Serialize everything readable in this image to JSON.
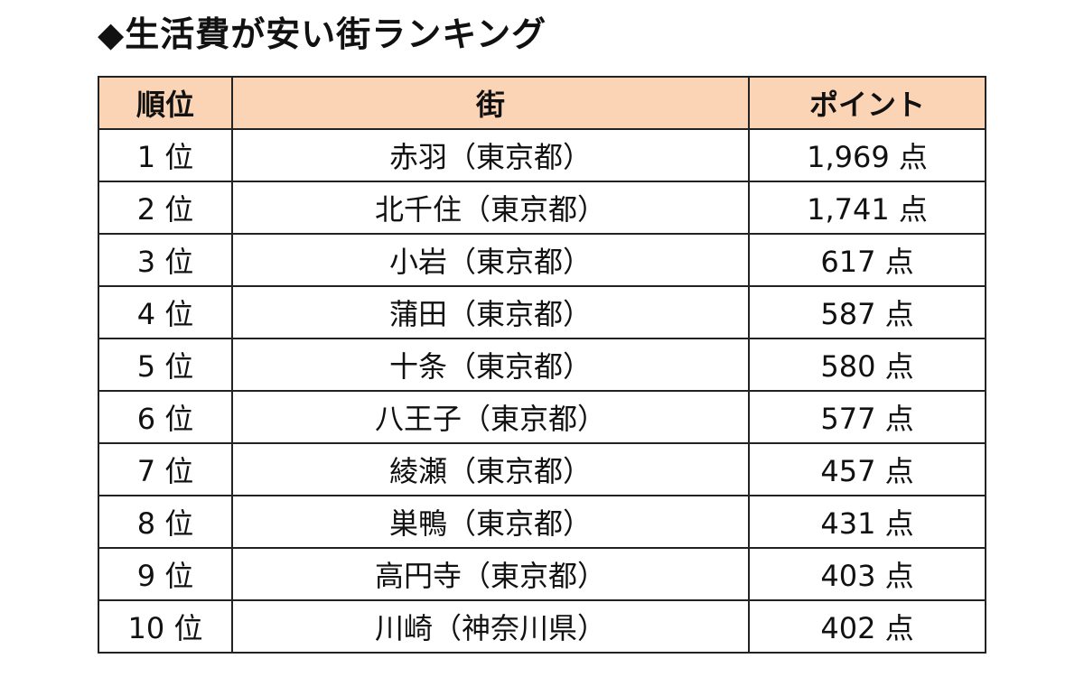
{
  "title": "◆生活費が安い街ランキング",
  "colors": {
    "header_background": "#fbd3b5",
    "border": "#222222",
    "text": "#111111"
  },
  "table": {
    "headers": {
      "rank": "順位",
      "town": "街",
      "points": "ポイント"
    },
    "rows": [
      {
        "rank": "1 位",
        "town": "赤羽（東京都）",
        "points": "1,969 点"
      },
      {
        "rank": "2 位",
        "town": "北千住（東京都）",
        "points": "1,741 点"
      },
      {
        "rank": "3 位",
        "town": "小岩（東京都）",
        "points": "617 点"
      },
      {
        "rank": "4 位",
        "town": "蒲田（東京都）",
        "points": "587 点"
      },
      {
        "rank": "5 位",
        "town": "十条（東京都）",
        "points": "580 点"
      },
      {
        "rank": "6 位",
        "town": "八王子（東京都）",
        "points": "577 点"
      },
      {
        "rank": "7 位",
        "town": "綾瀬（東京都）",
        "points": "457 点"
      },
      {
        "rank": "8 位",
        "town": "巣鴨（東京都）",
        "points": "431 点"
      },
      {
        "rank": "9 位",
        "town": "高円寺（東京都）",
        "points": "403 点"
      },
      {
        "rank": "10 位",
        "town": "川崎（神奈川県）",
        "points": "402 点"
      }
    ]
  }
}
